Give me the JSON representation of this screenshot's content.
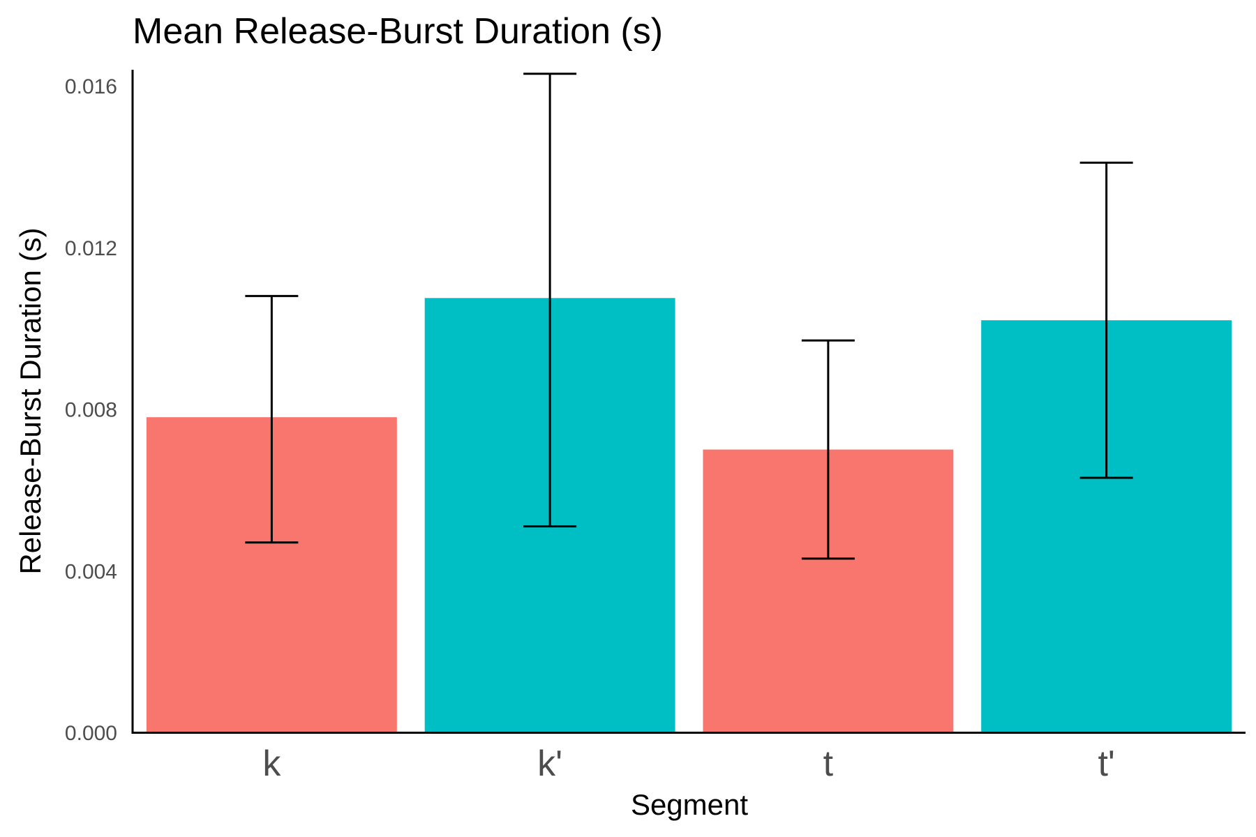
{
  "chart_data": {
    "type": "bar",
    "title": "Mean Release-Burst Duration (s)",
    "xlabel": "Segment",
    "ylabel": "Release-Burst Duration (s)",
    "categories": [
      "k",
      "k'",
      "t",
      "t'"
    ],
    "values": [
      0.0078,
      0.01075,
      0.007,
      0.0102
    ],
    "error_low": [
      0.0047,
      0.0051,
      0.0043,
      0.0063
    ],
    "error_high": [
      0.0108,
      0.0163,
      0.0097,
      0.0141
    ],
    "bar_colors": [
      "#F8766D",
      "#00BFC4",
      "#F8766D",
      "#00BFC4"
    ],
    "ylim": [
      0,
      0.0164
    ],
    "yticks": [
      "0.000",
      "0.004",
      "0.008",
      "0.012",
      "0.016"
    ],
    "grid": false,
    "legend": "none"
  }
}
